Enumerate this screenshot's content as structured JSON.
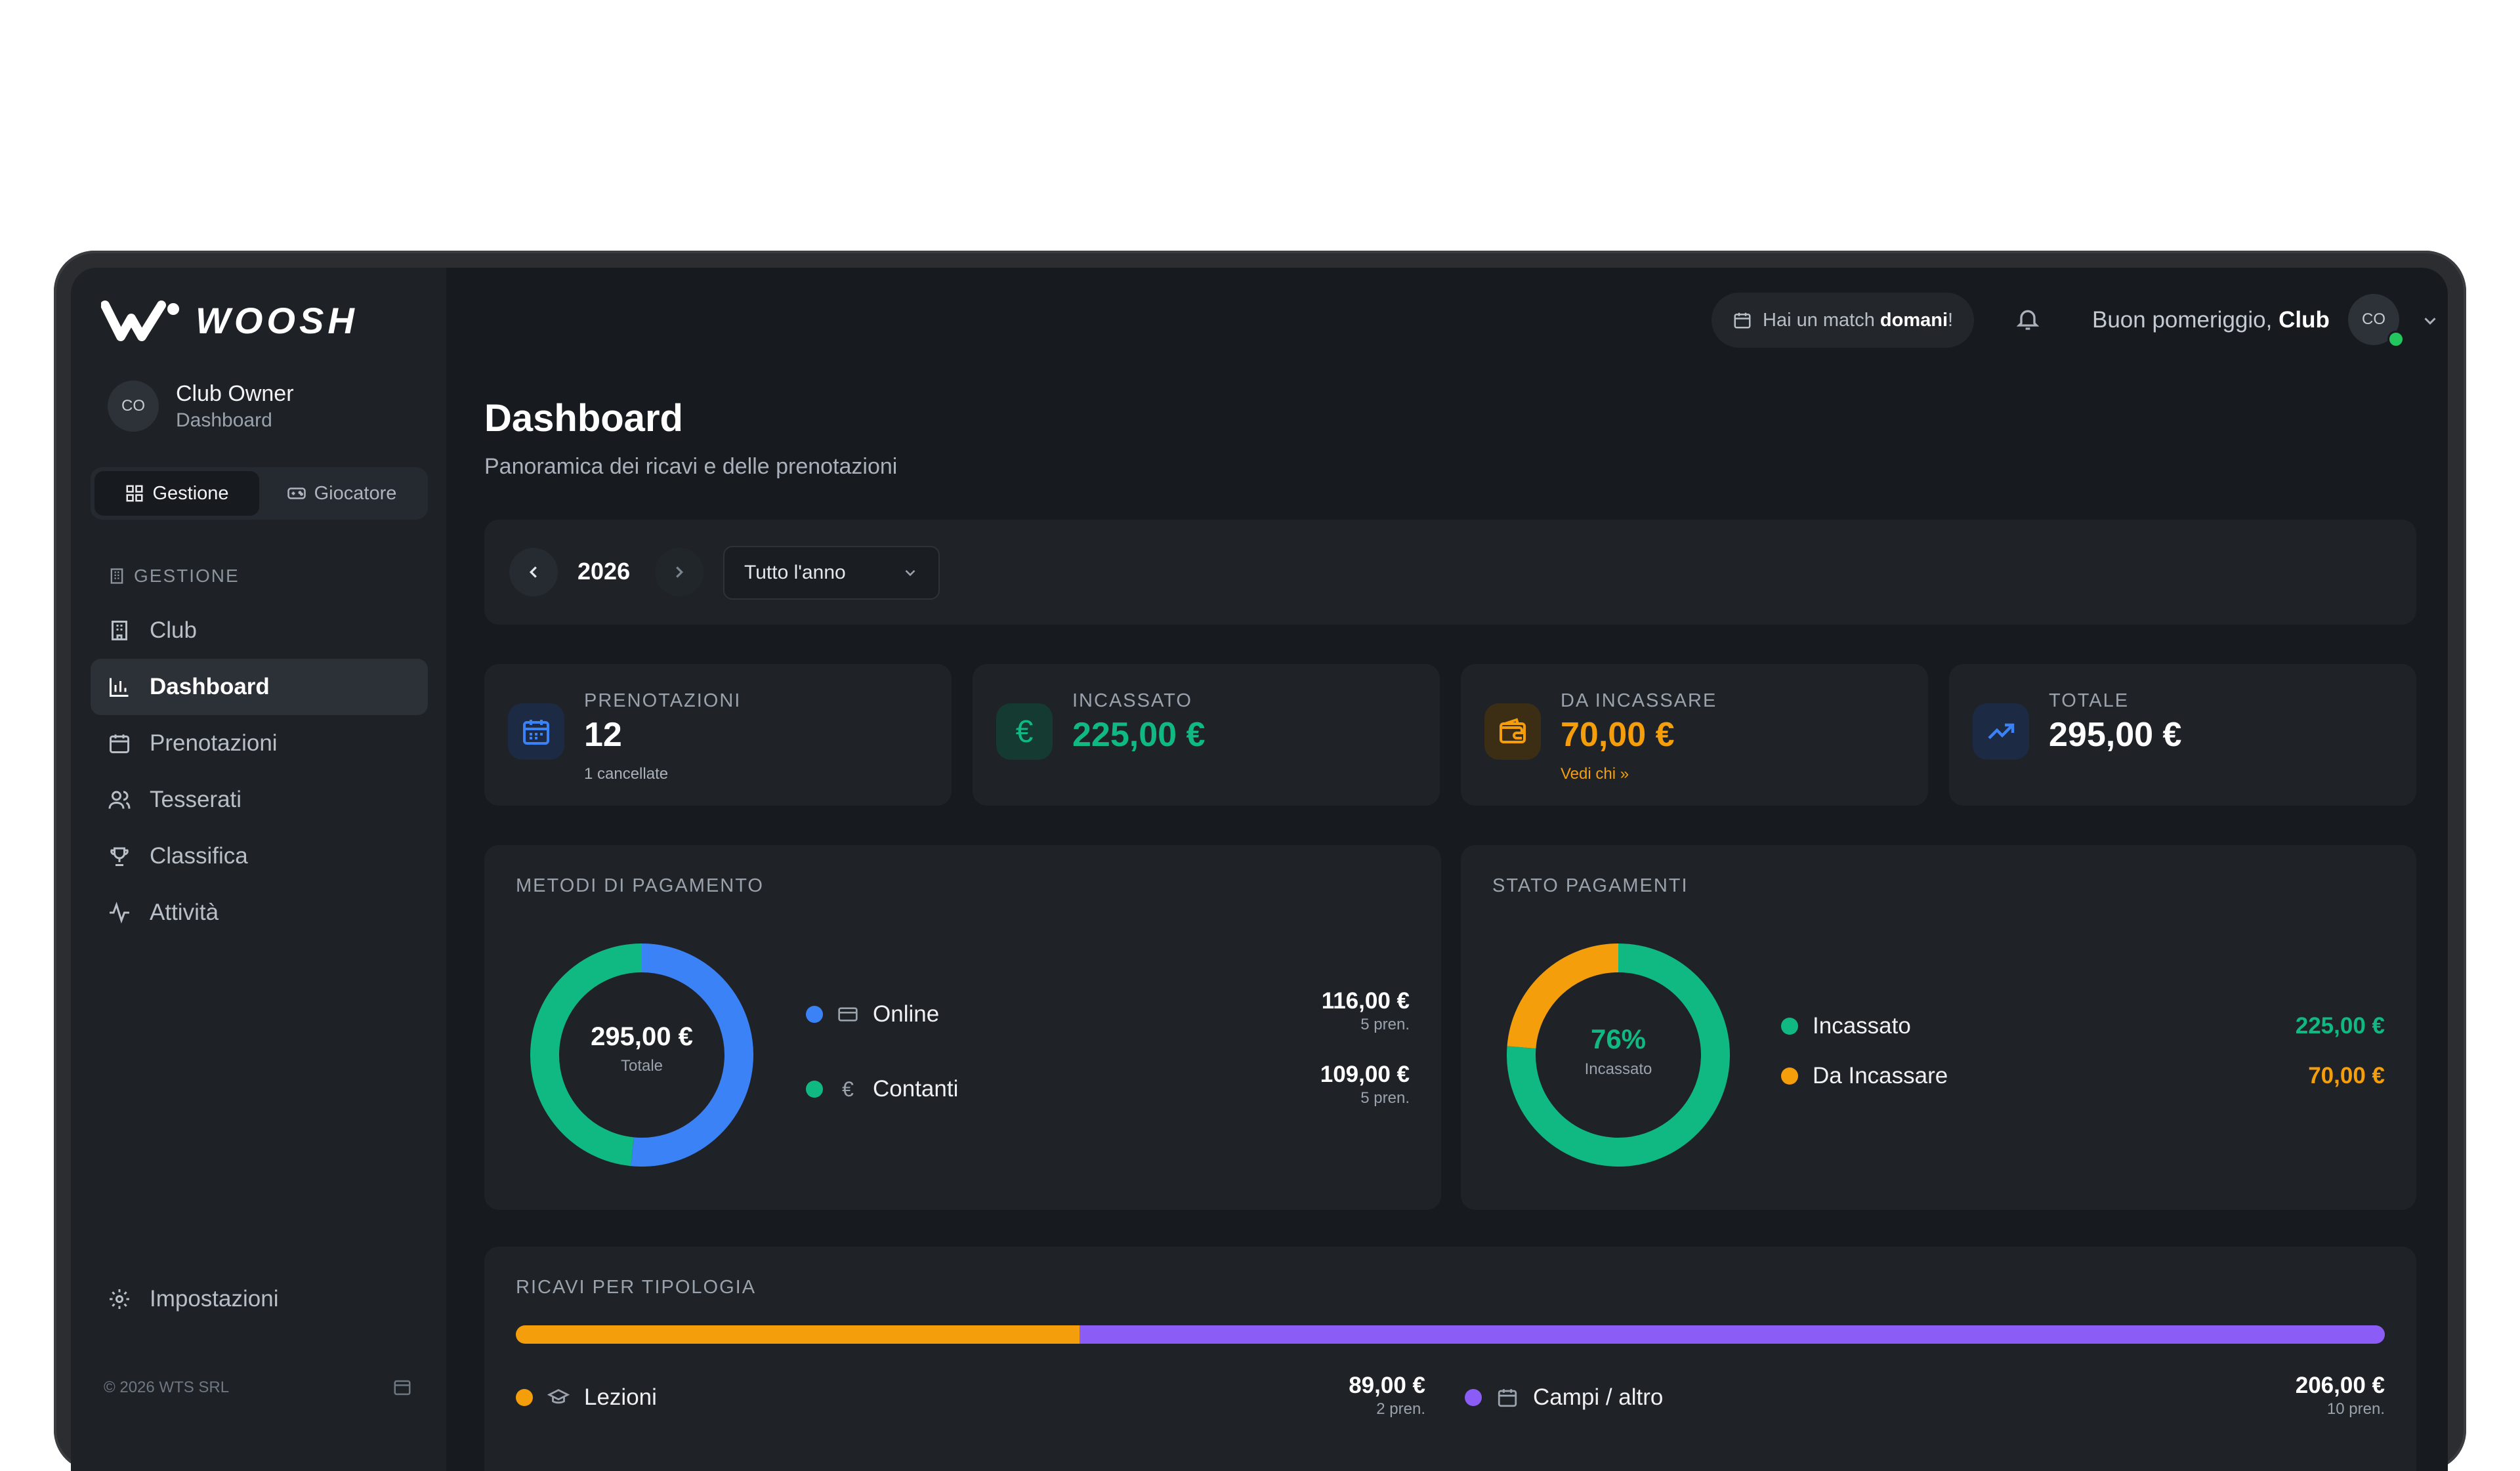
{
  "app": {
    "logo_text": "WOOSH"
  },
  "colors": {
    "bg": "#171a1e",
    "card": "#1f2328",
    "green": "#10b981",
    "blue": "#3b82f6",
    "orange": "#f59e0b",
    "purple": "#8b5cf6"
  },
  "sidebar": {
    "user_initials": "CO",
    "user_name": "Club Owner",
    "user_role": "Dashboard",
    "segments": [
      {
        "label": "Gestione",
        "icon": "grid-icon"
      },
      {
        "label": "Giocatore",
        "icon": "gamepad-icon"
      }
    ],
    "section_title": "GESTIONE",
    "items": [
      {
        "label": "Club",
        "icon": "building-icon"
      },
      {
        "label": "Dashboard",
        "icon": "bar-chart-icon"
      },
      {
        "label": "Prenotazioni",
        "icon": "calendar-icon"
      },
      {
        "label": "Tesserati",
        "icon": "users-icon"
      },
      {
        "label": "Classifica",
        "icon": "trophy-icon"
      },
      {
        "label": "Attività",
        "icon": "activity-icon"
      }
    ],
    "settings_label": "Impostazioni",
    "footer": "© 2026 WTS SRL"
  },
  "topbar": {
    "match_prefix": "Hai un match ",
    "match_bold": "domani",
    "match_suffix": "!",
    "greeting": "Buon pomeriggio, ",
    "greeting_name": "Club",
    "avatar_initials": "CO"
  },
  "header": {
    "title": "Dashboard",
    "subtitle": "Panoramica dei ricavi e delle prenotazioni"
  },
  "filter": {
    "year": "2026",
    "period": "Tutto l'anno"
  },
  "kpis": [
    {
      "label": "PRENOTAZIONI",
      "value": "12",
      "sub": "1 cancellate",
      "color": "#ffffff",
      "icon": "calendar-icon"
    },
    {
      "label": "INCASSATO",
      "value": "225,00 €",
      "sub": "",
      "color": "#10b981",
      "icon": "euro-icon"
    },
    {
      "label": "DA INCASSARE",
      "value": "70,00 €",
      "sub": "Vedi chi »",
      "color": "#f59e0b",
      "icon": "wallet-icon"
    },
    {
      "label": "TOTALE",
      "value": "295,00 €",
      "sub": "",
      "color": "#ffffff",
      "icon": "trending-up-icon"
    }
  ],
  "payment_methods": {
    "title": "METODI DI PAGAMENTO",
    "center_value": "295,00 €",
    "center_label": "Totale",
    "items": [
      {
        "label": "Online",
        "amount": "116,00 €",
        "count": "5 pren.",
        "value": 116,
        "color": "#3b82f6",
        "icon": "credit-card-icon"
      },
      {
        "label": "Contanti",
        "amount": "109,00 €",
        "count": "5 pren.",
        "value": 109,
        "color": "#10b981",
        "icon": "euro-icon"
      }
    ]
  },
  "payment_status": {
    "title": "STATO PAGAMENTI",
    "center_value": "76%",
    "center_label": "Incassato",
    "items": [
      {
        "label": "Incassato",
        "amount": "225,00 €",
        "value": 225,
        "color": "#10b981"
      },
      {
        "label": "Da Incassare",
        "amount": "70,00 €",
        "value": 70,
        "color": "#f59e0b"
      }
    ]
  },
  "revenue_types": {
    "title": "RICAVI PER TIPOLOGIA",
    "items": [
      {
        "label": "Lezioni",
        "amount": "89,00 €",
        "count": "2 pren.",
        "value": 89,
        "color": "#f59e0b",
        "icon": "graduation-cap-icon"
      },
      {
        "label": "Campi / altro",
        "amount": "206,00 €",
        "count": "10 pren.",
        "value": 206,
        "color": "#8b5cf6",
        "icon": "calendar-icon"
      }
    ]
  }
}
